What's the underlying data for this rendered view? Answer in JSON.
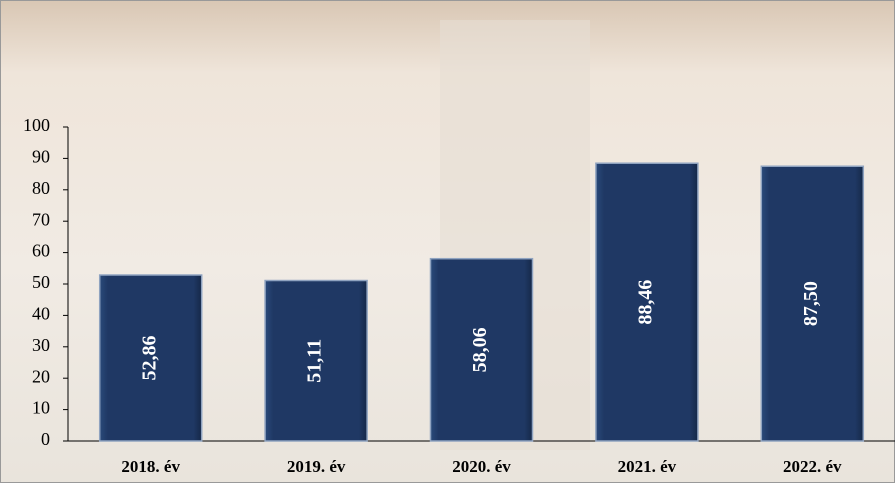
{
  "chart_data": {
    "type": "bar",
    "categories": [
      "2018. év",
      "2019. év",
      "2020. év",
      "2021. év",
      "2022. év"
    ],
    "values": [
      52.86,
      51.11,
      58.06,
      88.46,
      87.5
    ],
    "value_labels": [
      "52,86",
      "51,11",
      "58,06",
      "88,46",
      "87,50"
    ],
    "color": "#1f3864",
    "ylim": [
      0,
      100
    ],
    "yticks": [
      0,
      10,
      20,
      30,
      40,
      50,
      60,
      70,
      80,
      90,
      100
    ]
  }
}
